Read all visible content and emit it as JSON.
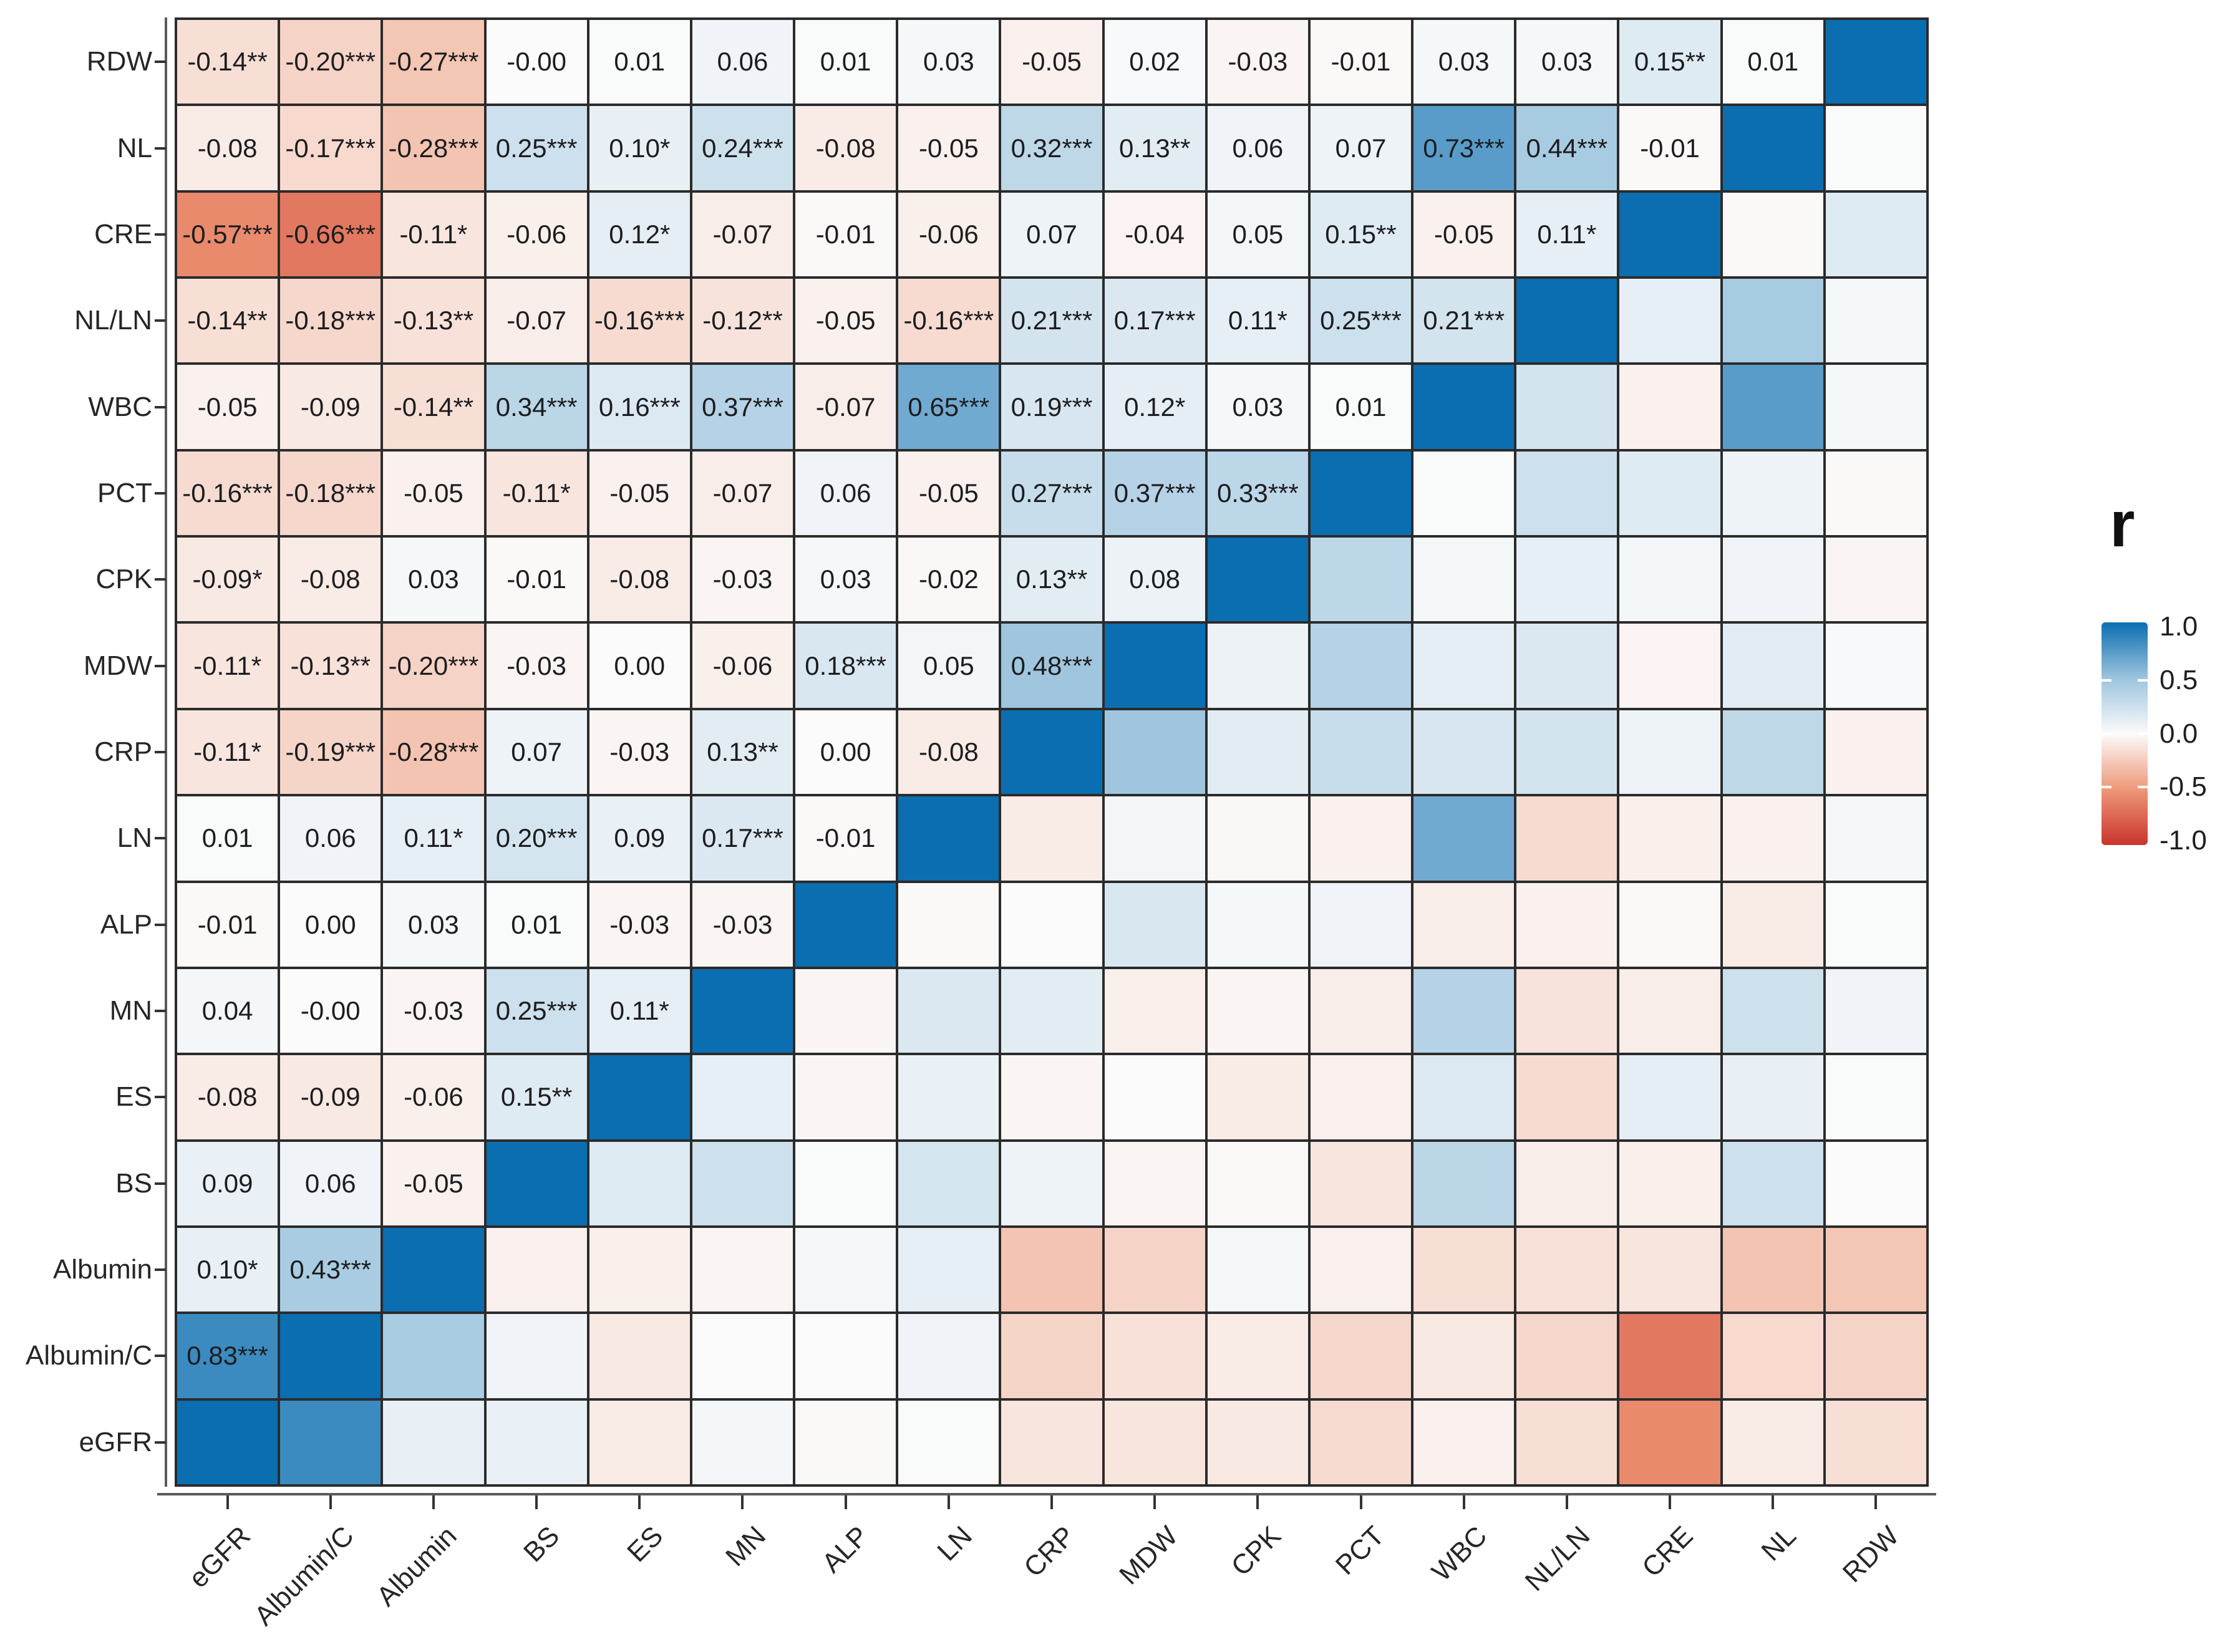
{
  "chart_data": {
    "type": "heatmap",
    "title": "",
    "description": "Pairwise Pearson correlation matrix; numeric labels with significance stars shown in cells left of the diagonal, colors only right of the diagonal, dark blue diagonal (r = 1).",
    "legend": {
      "title": "r",
      "position": "right",
      "limits": [
        -1.0,
        1.0
      ],
      "ticks": [
        {
          "label": "1.0",
          "value": 1.0
        },
        {
          "label": "0.5",
          "value": 0.5
        },
        {
          "label": "0.0",
          "value": 0.0
        },
        {
          "label": "-0.5",
          "value": -0.5
        },
        {
          "label": "-1.0",
          "value": -1.0
        }
      ]
    },
    "colors": {
      "scale_mid": "#FBFBFB",
      "scale_pos_half": "#9CC4DE",
      "scale_pos_end": "#0B6EB0",
      "scale_neg_half": "#EE9878",
      "scale_neg_end": "#C9342C",
      "grid_line": "#2b2b2b",
      "axis_line": "#5a5a5a",
      "cell_text": "#1d1d1f"
    },
    "row_labels_top_to_bottom": [
      "RDW",
      "NL",
      "CRE",
      "NL/LN",
      "WBC",
      "PCT",
      "CPK",
      "MDW",
      "CRP",
      "LN",
      "ALP",
      "MN",
      "ES",
      "BS",
      "Albumin",
      "Albumin/C",
      "eGFR"
    ],
    "col_labels_left_to_right": [
      "eGFR",
      "Albumin/C",
      "Albumin",
      "BS",
      "ES",
      "MN",
      "ALP",
      "LN",
      "CRP",
      "MDW",
      "CPK",
      "PCT",
      "WBC",
      "NL/LN",
      "CRE",
      "NL",
      "RDW"
    ],
    "rows": [
      {
        "label": "RDW",
        "cells": [
          "-0.14**",
          "-0.20***",
          "-0.27***",
          "-0.00",
          "0.01",
          "0.06",
          "0.01",
          "0.03",
          "-0.05",
          "0.02",
          "-0.03",
          "-0.01",
          "0.03",
          "0.03",
          "0.15**",
          "0.01"
        ]
      },
      {
        "label": "NL",
        "cells": [
          "-0.08",
          "-0.17***",
          "-0.28***",
          "0.25***",
          "0.10*",
          "0.24***",
          "-0.08",
          "-0.05",
          "0.32***",
          "0.13**",
          "0.06",
          "0.07",
          "0.73***",
          "0.44***",
          "-0.01"
        ]
      },
      {
        "label": "CRE",
        "cells": [
          "-0.57***",
          "-0.66***",
          "-0.11*",
          "-0.06",
          "0.12*",
          "-0.07",
          "-0.01",
          "-0.06",
          "0.07",
          "-0.04",
          "0.05",
          "0.15**",
          "-0.05",
          "0.11*"
        ]
      },
      {
        "label": "NL/LN",
        "cells": [
          "-0.14**",
          "-0.18***",
          "-0.13**",
          "-0.07",
          "-0.16***",
          "-0.12**",
          "-0.05",
          "-0.16***",
          "0.21***",
          "0.17***",
          "0.11*",
          "0.25***",
          "0.21***"
        ]
      },
      {
        "label": "WBC",
        "cells": [
          "-0.05",
          "-0.09",
          "-0.14**",
          "0.34***",
          "0.16***",
          "0.37***",
          "-0.07",
          "0.65***",
          "0.19***",
          "0.12*",
          "0.03",
          "0.01"
        ]
      },
      {
        "label": "PCT",
        "cells": [
          "-0.16***",
          "-0.18***",
          "-0.05",
          "-0.11*",
          "-0.05",
          "-0.07",
          "0.06",
          "-0.05",
          "0.27***",
          "0.37***",
          "0.33***"
        ]
      },
      {
        "label": "CPK",
        "cells": [
          "-0.09*",
          "-0.08",
          "0.03",
          "-0.01",
          "-0.08",
          "-0.03",
          "0.03",
          "-0.02",
          "0.13**",
          "0.08"
        ]
      },
      {
        "label": "MDW",
        "cells": [
          "-0.11*",
          "-0.13**",
          "-0.20***",
          "-0.03",
          "0.00",
          "-0.06",
          "0.18***",
          "0.05",
          "0.48***"
        ]
      },
      {
        "label": "CRP",
        "cells": [
          "-0.11*",
          "-0.19***",
          "-0.28***",
          "0.07",
          "-0.03",
          "0.13**",
          "0.00",
          "-0.08"
        ]
      },
      {
        "label": "LN",
        "cells": [
          "0.01",
          "0.06",
          "0.11*",
          "0.20***",
          "0.09",
          "0.17***",
          "-0.01"
        ]
      },
      {
        "label": "ALP",
        "cells": [
          "-0.01",
          "0.00",
          "0.03",
          "0.01",
          "-0.03",
          "-0.03"
        ]
      },
      {
        "label": "MN",
        "cells": [
          "0.04",
          "-0.00",
          "-0.03",
          "0.25***",
          "0.11*"
        ]
      },
      {
        "label": "ES",
        "cells": [
          "-0.08",
          "-0.09",
          "-0.06",
          "0.15**"
        ]
      },
      {
        "label": "BS",
        "cells": [
          "0.09",
          "0.06",
          "-0.05"
        ]
      },
      {
        "label": "Albumin",
        "cells": [
          "0.10*",
          "0.43***"
        ]
      },
      {
        "label": "Albumin/C",
        "cells": [
          "0.83***"
        ]
      },
      {
        "label": "eGFR",
        "cells": []
      }
    ],
    "diagonal_value": 1.0
  }
}
